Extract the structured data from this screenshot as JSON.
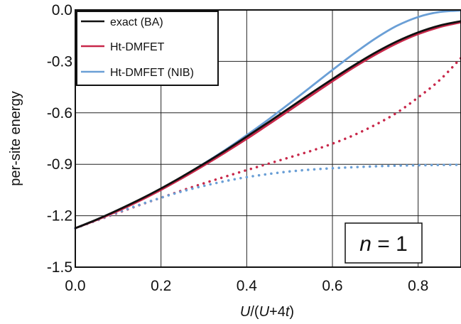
{
  "chart_data": {
    "type": "line",
    "xlabel_parts": [
      "U",
      "/(",
      "U",
      "+4",
      "t",
      ")"
    ],
    "ylabel": "per-site energy",
    "xlim": [
      0,
      0.9
    ],
    "ylim": [
      -1.5,
      0.0
    ],
    "xticks": [
      0.0,
      0.2,
      0.4,
      0.6,
      0.8
    ],
    "xtick_labels": [
      "0.0",
      "0.2",
      "0.4",
      "0.6",
      "0.8"
    ],
    "yticks": [
      0.0,
      -0.3,
      -0.6,
      -0.9,
      -1.2,
      -1.5
    ],
    "ytick_labels": [
      "0.0",
      "-0.3",
      "-0.6",
      "-0.9",
      "-1.2",
      "-1.5"
    ],
    "grid": true,
    "legend_position": "top-left",
    "annotation": {
      "var": "n",
      "rest": " = 1"
    },
    "series": [
      {
        "name": "exact (BA)",
        "color": "#111111",
        "style": "solid",
        "x": [
          0.0,
          0.05,
          0.1,
          0.15,
          0.2,
          0.25,
          0.3,
          0.35,
          0.4,
          0.45,
          0.5,
          0.55,
          0.6,
          0.65,
          0.7,
          0.75,
          0.8,
          0.85,
          0.9
        ],
        "y": [
          -1.273,
          -1.222,
          -1.166,
          -1.106,
          -1.041,
          -0.971,
          -0.897,
          -0.82,
          -0.739,
          -0.656,
          -0.571,
          -0.486,
          -0.403,
          -0.323,
          -0.249,
          -0.184,
          -0.131,
          -0.091,
          -0.065
        ]
      },
      {
        "name": "Ht-DMFET",
        "color": "#c8284a",
        "style": "solid",
        "x": [
          0.0,
          0.05,
          0.1,
          0.15,
          0.2,
          0.25,
          0.3,
          0.35,
          0.4,
          0.45,
          0.5,
          0.55,
          0.6,
          0.65,
          0.7,
          0.75,
          0.8,
          0.85,
          0.9
        ],
        "y": [
          -1.273,
          -1.225,
          -1.172,
          -1.113,
          -1.049,
          -0.98,
          -0.907,
          -0.831,
          -0.752,
          -0.669,
          -0.585,
          -0.5,
          -0.416,
          -0.335,
          -0.261,
          -0.195,
          -0.141,
          -0.1,
          -0.072
        ]
      },
      {
        "name": "Ht-DMFET (NIB)",
        "color": "#6a9fd6",
        "style": "solid",
        "x": [
          0.0,
          0.05,
          0.1,
          0.15,
          0.2,
          0.25,
          0.3,
          0.35,
          0.4,
          0.45,
          0.5,
          0.55,
          0.6,
          0.65,
          0.7,
          0.75,
          0.8,
          0.85,
          0.9
        ],
        "y": [
          -1.273,
          -1.223,
          -1.168,
          -1.108,
          -1.042,
          -0.972,
          -0.896,
          -0.816,
          -0.73,
          -0.64,
          -0.545,
          -0.448,
          -0.35,
          -0.255,
          -0.167,
          -0.093,
          -0.041,
          -0.012,
          -0.003
        ]
      },
      {
        "name": "",
        "color": "#c8284a",
        "style": "dotted",
        "x": [
          0.0,
          0.05,
          0.1,
          0.15,
          0.2,
          0.25,
          0.3,
          0.35,
          0.4,
          0.45,
          0.5,
          0.55,
          0.6,
          0.65,
          0.7,
          0.75,
          0.8,
          0.85,
          0.9
        ],
        "y": [
          -1.273,
          -1.228,
          -1.183,
          -1.138,
          -1.095,
          -1.052,
          -1.011,
          -0.972,
          -0.934,
          -0.897,
          -0.86,
          -0.822,
          -0.78,
          -0.73,
          -0.67,
          -0.6,
          -0.51,
          -0.41,
          -0.28
        ]
      },
      {
        "name": "",
        "color": "#6a9fd6",
        "style": "dotted",
        "x": [
          0.0,
          0.05,
          0.1,
          0.15,
          0.2,
          0.25,
          0.3,
          0.35,
          0.4,
          0.45,
          0.5,
          0.55,
          0.6,
          0.65,
          0.7,
          0.75,
          0.8,
          0.85,
          0.9
        ],
        "y": [
          -1.273,
          -1.227,
          -1.18,
          -1.136,
          -1.095,
          -1.058,
          -1.026,
          -0.998,
          -0.975,
          -0.957,
          -0.942,
          -0.931,
          -0.923,
          -0.917,
          -0.912,
          -0.908,
          -0.906,
          -0.904,
          -0.903
        ]
      }
    ]
  }
}
